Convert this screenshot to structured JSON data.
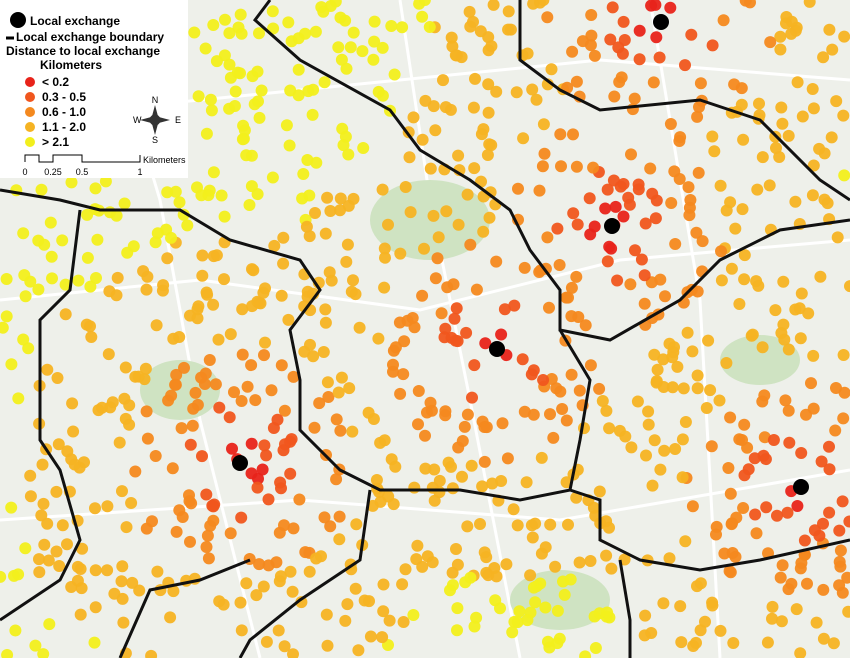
{
  "legend": {
    "exchange": "Local exchange",
    "boundary": "Local exchange boundary",
    "distance_title": "Distance to local exchange",
    "unit": "Kilometers",
    "classes": [
      {
        "label": "< 0.2",
        "color": "#e8231a"
      },
      {
        "label": "0.3 - 0.5",
        "color": "#f0561e"
      },
      {
        "label": "0.6 - 1.0",
        "color": "#f4891f"
      },
      {
        "label": "1.1 - 2.0",
        "color": "#f5b323"
      },
      {
        "label": "> 2.1",
        "color": "#f2ef1c"
      }
    ]
  },
  "scale_bar": {
    "ticks": [
      "0",
      "0.25",
      "0.5",
      "1"
    ],
    "unit": "Kilometers"
  },
  "compass": {
    "n": "N",
    "s": "S",
    "e": "E",
    "w": "W"
  }
}
